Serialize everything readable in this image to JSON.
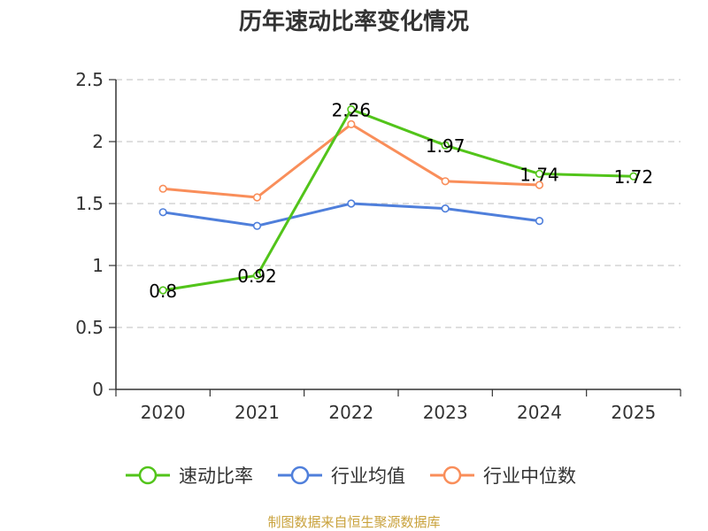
{
  "chart_data": {
    "type": "line",
    "title": "历年速动比率变化情况",
    "categories": [
      "2020",
      "2021",
      "2022",
      "2023",
      "2024",
      "2025"
    ],
    "ylim": [
      0,
      2.5
    ],
    "yticks": [
      "0",
      "0.5",
      "1",
      "1.5",
      "2",
      "2.5"
    ],
    "ytick_values": [
      0,
      0.5,
      1,
      1.5,
      2,
      2.5
    ],
    "grid": true,
    "legend_position": "bottom",
    "series": [
      {
        "name": "速动比率",
        "color": "#52c41a",
        "values": [
          0.8,
          0.92,
          2.26,
          1.97,
          1.74,
          1.72
        ],
        "labels": [
          "0.8",
          "0.92",
          "2.26",
          "1.97",
          "1.74",
          "1.72"
        ],
        "show_labels": true
      },
      {
        "name": "行业均值",
        "color": "#4f7fdb",
        "values": [
          1.43,
          1.32,
          1.5,
          1.46,
          1.36,
          null
        ],
        "show_labels": false
      },
      {
        "name": "行业中位数",
        "color": "#f98e5a",
        "values": [
          1.62,
          1.55,
          2.14,
          1.68,
          1.65,
          null
        ],
        "show_labels": false
      }
    ],
    "source": "制图数据来自恒生聚源数据库"
  }
}
